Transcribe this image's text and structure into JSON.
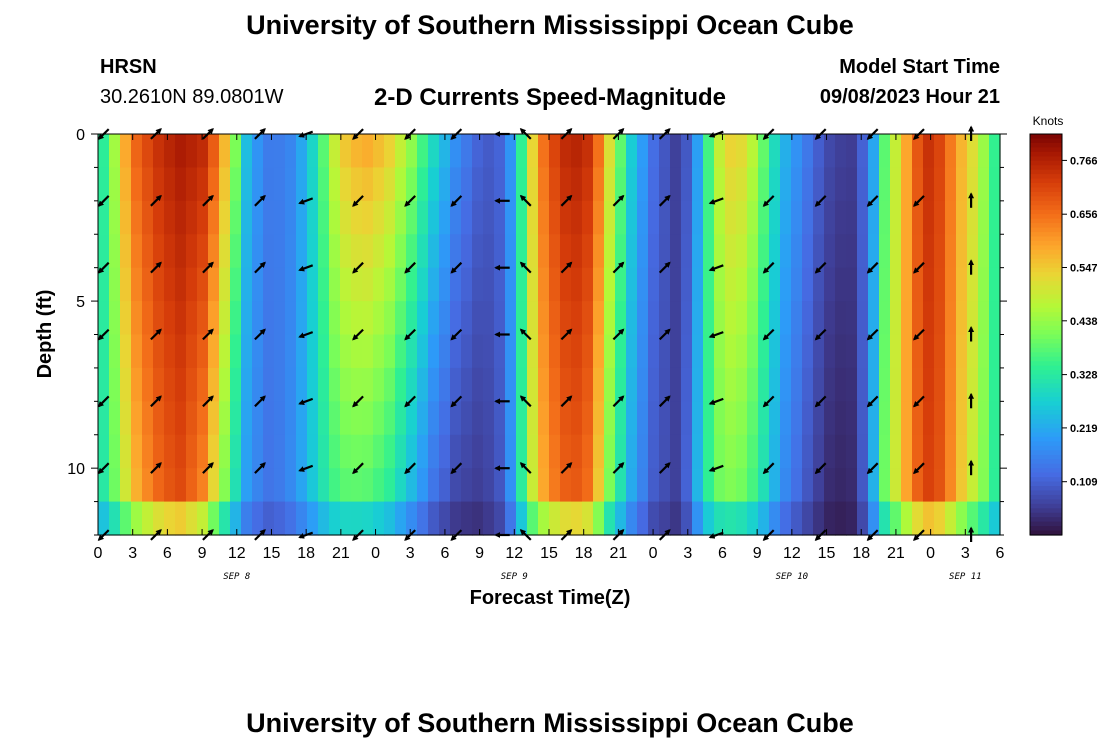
{
  "header": {
    "title": "University of Southern Mississippi Ocean Cube",
    "station": "HRSN",
    "coords": "30.2610N  89.0801W",
    "subtitle": "2-D Currents Speed-Magnitude",
    "model_label": "Model Start Time",
    "model_time": "09/08/2023 Hour 21",
    "repeat_title": "University of Southern Mississippi Ocean Cube"
  },
  "chart_data": {
    "type": "heatmap",
    "title": "2-D Currents Speed-Magnitude",
    "xlabel": "Forecast Time(Z)",
    "ylabel": "Depth (ft)",
    "x_tick_labels": [
      "0",
      "3",
      "6",
      "9",
      "12",
      "15",
      "18",
      "21",
      "0",
      "3",
      "6",
      "9",
      "12",
      "15",
      "18",
      "21",
      "0",
      "3",
      "6",
      "9",
      "12",
      "15",
      "18",
      "21",
      "0",
      "3",
      "6"
    ],
    "x_range_hours": [
      0,
      78
    ],
    "y_tick_labels": [
      "0",
      "5",
      "10"
    ],
    "y_ticks_ft": [
      0,
      5,
      10
    ],
    "y_range_ft": [
      0,
      12
    ],
    "date_labels": [
      {
        "text": "SEP 8",
        "hour": 12
      },
      {
        "text": "SEP 9",
        "hour": 36
      },
      {
        "text": "SEP 10",
        "hour": 60
      },
      {
        "text": "SEP 11",
        "hour": 75
      }
    ],
    "colorbar": {
      "unit_label": "Knots",
      "tick_labels": [
        "0.766",
        "0.656",
        "0.547",
        "0.438",
        "0.328",
        "0.219",
        "0.109"
      ],
      "min": 0.0,
      "max": 0.82
    },
    "speed_profile": {
      "hours": [
        0,
        1,
        2,
        3,
        5,
        7,
        9,
        10.5,
        12,
        13,
        15,
        17,
        19,
        20,
        21,
        23,
        25,
        27,
        29,
        31,
        33,
        34,
        35,
        36,
        37,
        38,
        40,
        42,
        43,
        44,
        46,
        48,
        50,
        51,
        52,
        53,
        54,
        55,
        56,
        57,
        58,
        59,
        61,
        63,
        65,
        66,
        67,
        68,
        70,
        71,
        72,
        73,
        74,
        75,
        76,
        77,
        78
      ],
      "surface_knots": [
        0.3,
        0.38,
        0.55,
        0.66,
        0.74,
        0.78,
        0.76,
        0.65,
        0.4,
        0.22,
        0.14,
        0.17,
        0.32,
        0.45,
        0.55,
        0.6,
        0.56,
        0.45,
        0.3,
        0.18,
        0.11,
        0.1,
        0.12,
        0.22,
        0.42,
        0.62,
        0.75,
        0.77,
        0.7,
        0.55,
        0.28,
        0.13,
        0.06,
        0.1,
        0.22,
        0.4,
        0.52,
        0.55,
        0.52,
        0.45,
        0.35,
        0.25,
        0.16,
        0.08,
        0.05,
        0.1,
        0.2,
        0.38,
        0.6,
        0.7,
        0.75,
        0.7,
        0.62,
        0.55,
        0.5,
        0.4,
        0.3
      ],
      "deep_knots": [
        0.3,
        0.35,
        0.45,
        0.55,
        0.65,
        0.7,
        0.62,
        0.45,
        0.28,
        0.18,
        0.13,
        0.18,
        0.28,
        0.33,
        0.36,
        0.36,
        0.32,
        0.22,
        0.12,
        0.06,
        0.05,
        0.07,
        0.1,
        0.22,
        0.4,
        0.55,
        0.66,
        0.68,
        0.58,
        0.42,
        0.22,
        0.1,
        0.06,
        0.12,
        0.26,
        0.36,
        0.4,
        0.4,
        0.38,
        0.33,
        0.26,
        0.18,
        0.1,
        0.03,
        0.02,
        0.08,
        0.22,
        0.4,
        0.6,
        0.68,
        0.72,
        0.68,
        0.6,
        0.52,
        0.46,
        0.38,
        0.3
      ]
    },
    "arrow_hours": [
      0.5,
      5,
      9.5,
      14,
      18,
      22.5,
      27,
      31,
      35,
      37,
      40.5,
      45,
      49,
      53.5,
      58,
      62.5,
      67,
      71,
      75.5
    ],
    "arrow_depths_ft": [
      0,
      2,
      4,
      6,
      8,
      10,
      12
    ],
    "arrow_direction_deg": [
      225,
      45,
      45,
      45,
      200,
      225,
      225,
      225,
      180,
      135,
      45,
      45,
      45,
      200,
      225,
      225,
      225,
      225,
      90
    ]
  }
}
